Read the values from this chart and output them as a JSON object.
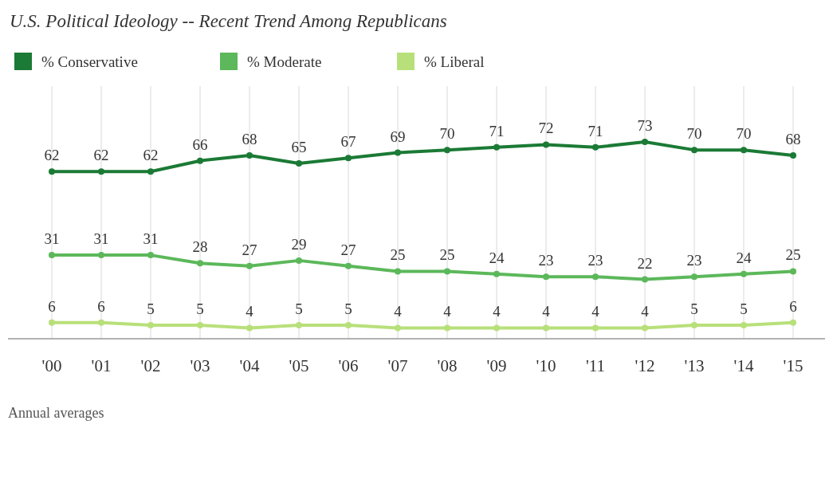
{
  "chart_data": {
    "type": "line",
    "title": "U.S. Political Ideology -- Recent Trend Among Republicans",
    "categories": [
      "'00",
      "'01",
      "'02",
      "'03",
      "'04",
      "'05",
      "'06",
      "'07",
      "'08",
      "'09",
      "'10",
      "'11",
      "'12",
      "'13",
      "'14",
      "'15"
    ],
    "series": [
      {
        "name": "% Conservative",
        "color": "#1b7a35",
        "values": [
          62,
          62,
          62,
          66,
          68,
          65,
          67,
          69,
          70,
          71,
          72,
          71,
          73,
          70,
          70,
          68
        ]
      },
      {
        "name": "% Moderate",
        "color": "#5cb85a",
        "values": [
          31,
          31,
          31,
          28,
          27,
          29,
          27,
          25,
          25,
          24,
          23,
          23,
          22,
          23,
          24,
          25
        ]
      },
      {
        "name": "% Liberal",
        "color": "#b8e07a",
        "values": [
          6,
          6,
          5,
          5,
          4,
          5,
          5,
          4,
          4,
          4,
          4,
          4,
          4,
          5,
          5,
          6
        ]
      }
    ],
    "data_labels": true,
    "grid": "x",
    "legend": "top left",
    "marker": "circle",
    "line_style": "solid",
    "annotations": [
      "Annual averages"
    ]
  }
}
